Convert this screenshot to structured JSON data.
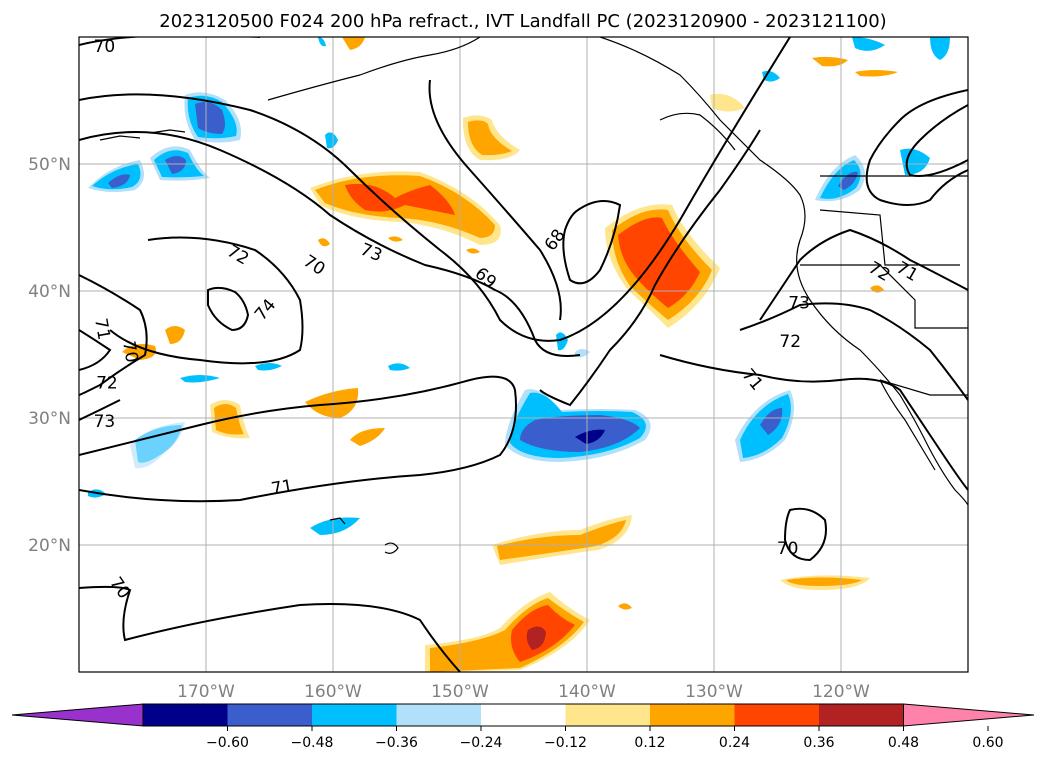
{
  "chart_data": {
    "type": "contour-map",
    "title": "2023120500 F024 200 hPa refract., IVT Landfall PC (2023120900 - 2023121100)",
    "xlim": [
      -180,
      -110
    ],
    "ylim": [
      10,
      60
    ],
    "grid": true,
    "x_ticks": [
      {
        "value": -170,
        "label": "170°W"
      },
      {
        "value": -160,
        "label": "160°W"
      },
      {
        "value": -150,
        "label": "150°W"
      },
      {
        "value": -140,
        "label": "140°W"
      },
      {
        "value": -130,
        "label": "130°W"
      },
      {
        "value": -120,
        "label": "120°W"
      }
    ],
    "y_ticks": [
      {
        "value": 20,
        "label": "20°N"
      },
      {
        "value": 30,
        "label": "30°N"
      },
      {
        "value": 40,
        "label": "40°N"
      },
      {
        "value": 50,
        "label": "50°N"
      }
    ],
    "contour_labels": [
      {
        "text": "70",
        "lon": -178,
        "lat": 59.2,
        "rot": 0
      },
      {
        "text": "73",
        "lon": -157,
        "lat": 43.0,
        "rot": 22
      },
      {
        "text": "72",
        "lon": -167.5,
        "lat": 42.8,
        "rot": 30
      },
      {
        "text": "70",
        "lon": -161.5,
        "lat": 42.0,
        "rot": 33
      },
      {
        "text": "69",
        "lon": -148,
        "lat": 41.0,
        "rot": 40
      },
      {
        "text": "68",
        "lon": -142.5,
        "lat": 44.0,
        "rot": -55
      },
      {
        "text": "74",
        "lon": -165.3,
        "lat": 38.5,
        "rot": -50
      },
      {
        "text": "71",
        "lon": -178.2,
        "lat": 37.0,
        "rot": 80
      },
      {
        "text": "70",
        "lon": -176.0,
        "lat": 35.2,
        "rot": 80
      },
      {
        "text": "72",
        "lon": -177.8,
        "lat": 32.7,
        "rot": 0
      },
      {
        "text": "73",
        "lon": -178.0,
        "lat": 29.7,
        "rot": 0
      },
      {
        "text": "71",
        "lon": -164.0,
        "lat": 24.5,
        "rot": -10
      },
      {
        "text": "70",
        "lon": -176.8,
        "lat": 16.6,
        "rot": 55
      },
      {
        "text": "73",
        "lon": -123.3,
        "lat": 39.0,
        "rot": 0
      },
      {
        "text": "72",
        "lon": -124.0,
        "lat": 36.0,
        "rot": 0
      },
      {
        "text": "71",
        "lon": -127.0,
        "lat": 33.0,
        "rot": 50
      },
      {
        "text": "72",
        "lon": -117.0,
        "lat": 41.5,
        "rot": 30
      },
      {
        "text": "71",
        "lon": -114.8,
        "lat": 41.5,
        "rot": 30
      },
      {
        "text": "70",
        "lon": -124.2,
        "lat": 19.7,
        "rot": 0
      }
    ],
    "colorbar": {
      "extend": "both",
      "ticks": [
        "−0.60",
        "−0.48",
        "−0.36",
        "−0.24",
        "−0.12",
        "0.12",
        "0.24",
        "0.36",
        "0.48",
        "0.60"
      ],
      "colors": [
        "#9932cc",
        "#00008b",
        "#3a5fcd",
        "#00bfff",
        "#b0e0fa",
        "#ffffff",
        "#ffe68c",
        "#ffa500",
        "#ff4500",
        "#b22222",
        "#ff82ab"
      ]
    },
    "contour_color": "#000000",
    "grid_color": "#b0b0b0"
  }
}
